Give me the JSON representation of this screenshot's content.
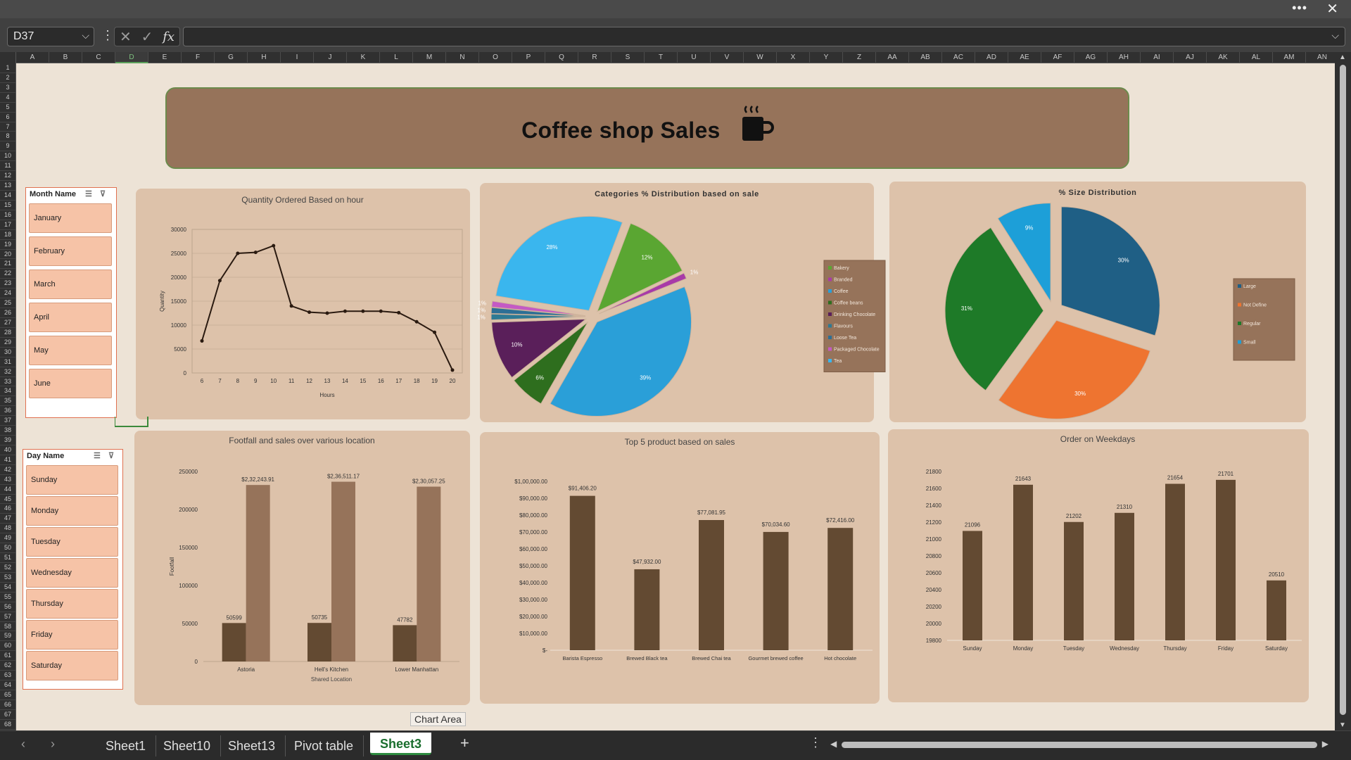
{
  "window": {
    "more_label": "•••",
    "close_label": "✕"
  },
  "formula_bar": {
    "name_box": "D37",
    "formula": "",
    "fx_label": "fx"
  },
  "columns": [
    "A",
    "B",
    "C",
    "D",
    "E",
    "F",
    "G",
    "H",
    "I",
    "J",
    "K",
    "L",
    "M",
    "N",
    "O",
    "P",
    "Q",
    "R",
    "S",
    "T",
    "U",
    "V",
    "W",
    "X",
    "Y",
    "Z",
    "AA",
    "AB",
    "AC",
    "AD",
    "AE",
    "AF",
    "AG",
    "AH",
    "AI",
    "AJ",
    "AK",
    "AL",
    "AM",
    "AN"
  ],
  "selected_column": "D",
  "row_count": 68,
  "dashboard": {
    "title": "Coffee shop Sales",
    "title_icon": "coffee-mug-icon",
    "colors": {
      "background": "#ede3d6",
      "banner": "#96735a",
      "panel": "#ddc2aa",
      "bar_dark": "#634a32",
      "bar_light": "#96735a",
      "slicer_item": "#f6c3a7"
    }
  },
  "month_slicer": {
    "title": "Month Name",
    "items": [
      "January",
      "February",
      "March",
      "April",
      "May",
      "June"
    ]
  },
  "day_slicer": {
    "title": "Day Name",
    "items": [
      "Sunday",
      "Monday",
      "Tuesday",
      "Wednesday",
      "Thursday",
      "Friday",
      "Saturday"
    ]
  },
  "chart_data": [
    {
      "id": "hour",
      "type": "line",
      "title": "Quantity Ordered Based on hour",
      "xlabel": "Hours",
      "ylabel": "Quantity",
      "x": [
        6,
        7,
        8,
        9,
        10,
        11,
        12,
        13,
        14,
        15,
        16,
        17,
        18,
        19,
        20
      ],
      "values": [
        6700,
        19300,
        25000,
        25200,
        26600,
        14000,
        12700,
        12500,
        12900,
        12900,
        12900,
        12600,
        10700,
        8500,
        600
      ],
      "ylim": [
        0,
        30000
      ],
      "yticks": [
        0,
        5000,
        10000,
        15000,
        20000,
        25000,
        30000
      ],
      "grid": true
    },
    {
      "id": "categories",
      "type": "pie",
      "title": "Categories % Distribution based on sale",
      "legend": [
        "Bakery",
        "Branded",
        "Coffee",
        "Coffee beans",
        "Drinking Chocolate",
        "Flavours",
        "Loose Tea",
        "Packaged Chocolate",
        "Tea"
      ],
      "colors": [
        "#5aa632",
        "#a83aa8",
        "#2a9fd8",
        "#2e6e1e",
        "#5a1f5a",
        "#2e7a94",
        "#2d6f95",
        "#c45ac4",
        "#3ab6ee"
      ],
      "values": [
        12,
        1,
        39,
        6,
        10,
        1,
        1,
        1,
        28
      ],
      "labels": [
        "12%",
        "1%",
        "39%",
        "6%",
        "10%",
        "1%",
        "1%",
        "1%",
        "28%"
      ],
      "legend_position": "right"
    },
    {
      "id": "size",
      "type": "pie",
      "title": "% Size Distribution",
      "legend": [
        "Large",
        "Not Define",
        "Regular",
        "Small"
      ],
      "colors": [
        "#1f5f85",
        "#ee7430",
        "#1e7a28",
        "#1d9fd8"
      ],
      "values": [
        30,
        30,
        31,
        9
      ],
      "labels": [
        "30%",
        "30%",
        "31%",
        "9%"
      ],
      "legend_position": "right"
    },
    {
      "id": "location",
      "type": "bar",
      "title": "Footfall and sales over various location",
      "xlabel": "Shared Location",
      "ylabel": "Footfall",
      "categories": [
        "Astoria",
        "Hell's Kitchen",
        "Lower Manhattan"
      ],
      "series": [
        {
          "values": [
            50599,
            50735,
            47782
          ],
          "labels": [
            "50599",
            "50735",
            "47782"
          ]
        },
        {
          "values": [
            232243.91,
            236511.17,
            230057.25
          ],
          "labels": [
            "$2,32,243.91",
            "$2,36,511.17",
            "$2,30,057.25"
          ]
        }
      ],
      "ylim": [
        0,
        250000
      ],
      "yticks": [
        "0",
        "50000",
        "100000",
        "150000",
        "200000",
        "250000"
      ]
    },
    {
      "id": "top5",
      "type": "bar",
      "title": "Top 5 product based on sales",
      "categories": [
        "Barista Espresso",
        "Brewed Black tea",
        "Brewed Chai tea",
        "Gourmet brewed coffee",
        "Hot chocolate"
      ],
      "values": [
        91406.2,
        47932,
        77081.95,
        70034.6,
        72416
      ],
      "labels": [
        "$91,406.20",
        "$47,932.00",
        "$77,081.95",
        "$70,034.60",
        "$72,416.00"
      ],
      "ylim": [
        0,
        100000
      ],
      "yticks": [
        "$-",
        "$10,000.00",
        "$20,000.00",
        "$30,000.00",
        "$40,000.00",
        "$50,000.00",
        "$60,000.00",
        "$70,000.00",
        "$80,000.00",
        "$90,000.00",
        "$1,00,000.00"
      ]
    },
    {
      "id": "weekday",
      "type": "bar",
      "title": "Order on Weekdays",
      "categories": [
        "Sunday",
        "Monday",
        "Tuesday",
        "Wednesday",
        "Thursday",
        "Friday",
        "Saturday"
      ],
      "values": [
        21096,
        21643,
        21202,
        21310,
        21654,
        21701,
        20510
      ],
      "ylim": [
        19800,
        21800
      ],
      "yticks": [
        "19800",
        "20000",
        "20200",
        "20400",
        "20600",
        "20800",
        "21000",
        "21200",
        "21400",
        "21600",
        "21800"
      ]
    }
  ],
  "tooltip": "Chart Area",
  "sheet_tabs": [
    "Sheet1",
    "Sheet10",
    "Sheet13",
    "Pivot table",
    "Sheet3"
  ],
  "active_tab": "Sheet3",
  "add_sheet_label": "+"
}
